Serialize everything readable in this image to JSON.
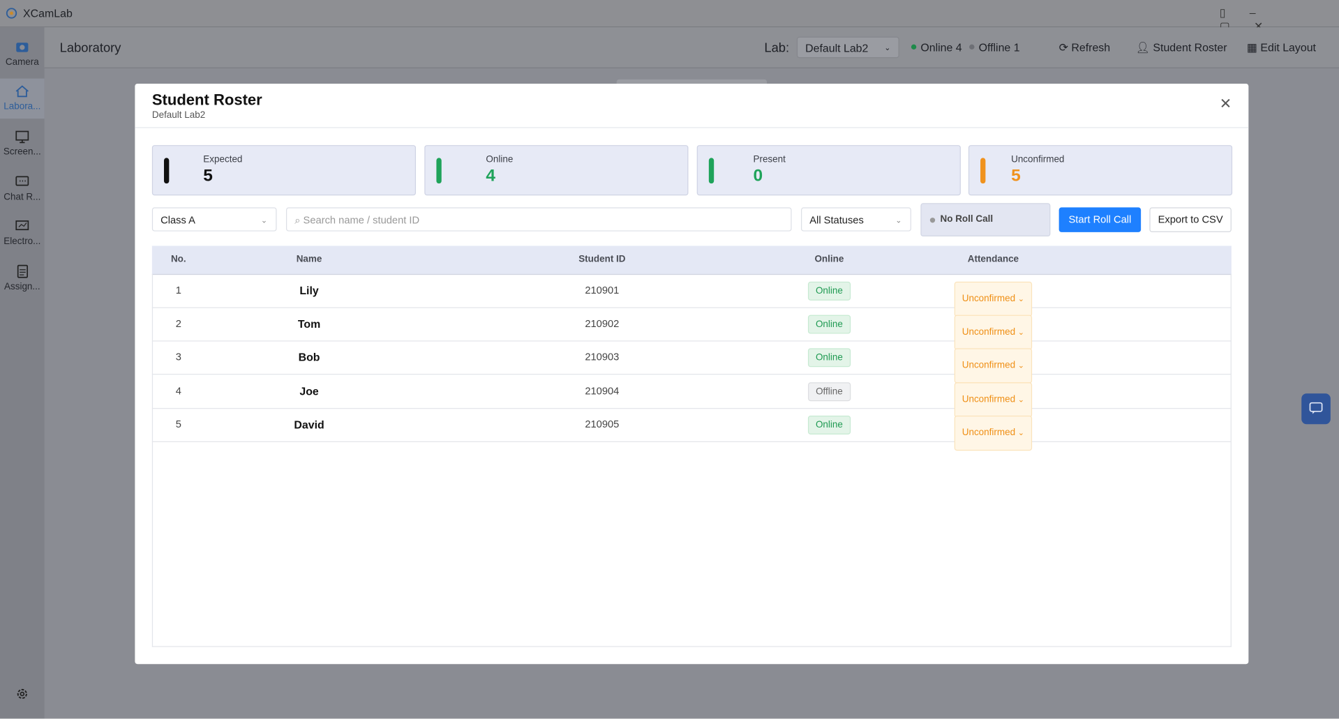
{
  "app": {
    "title": "XCamLab"
  },
  "sidebar": [
    {
      "label": "Camera"
    },
    {
      "label": "Labora..."
    },
    {
      "label": "Screen..."
    },
    {
      "label": "Chat R..."
    },
    {
      "label": "Electro..."
    },
    {
      "label": "Assign..."
    }
  ],
  "header": {
    "title": "Laboratory",
    "lab_label": "Lab:",
    "lab_value": "Default Lab2",
    "online": "Online 4",
    "offline": "Offline 1",
    "refresh": "Refresh",
    "roster": "Student Roster",
    "edit_layout": "Edit Layout"
  },
  "modal": {
    "title": "Student Roster",
    "subtitle": "Default Lab2",
    "stats": [
      {
        "label": "Expected",
        "value": 5
      },
      {
        "label": "Online",
        "value": 4
      },
      {
        "label": "Present",
        "value": 0
      },
      {
        "label": "Unconfirmed",
        "value": 5
      }
    ],
    "filters": {
      "class": "Class A",
      "search_placeholder": "Search name / student ID",
      "status": "All Statuses",
      "roll_call_state": "No Roll Call",
      "start": "Start Roll Call",
      "export": "Export to CSV"
    },
    "table": {
      "columns": [
        "No.",
        "Name",
        "Student ID",
        "Online",
        "Attendance"
      ],
      "rows": [
        [
          1,
          "Lily",
          "210901",
          "Online",
          "Unconfirmed"
        ],
        [
          2,
          "Tom",
          "210902",
          "Online",
          "Unconfirmed"
        ],
        [
          3,
          "Bob",
          "210903",
          "Online",
          "Unconfirmed"
        ],
        [
          4,
          "Joe",
          "210904",
          "Offline",
          "Unconfirmed"
        ],
        [
          5,
          "David",
          "210905",
          "Online",
          "Unconfirmed"
        ]
      ]
    }
  }
}
